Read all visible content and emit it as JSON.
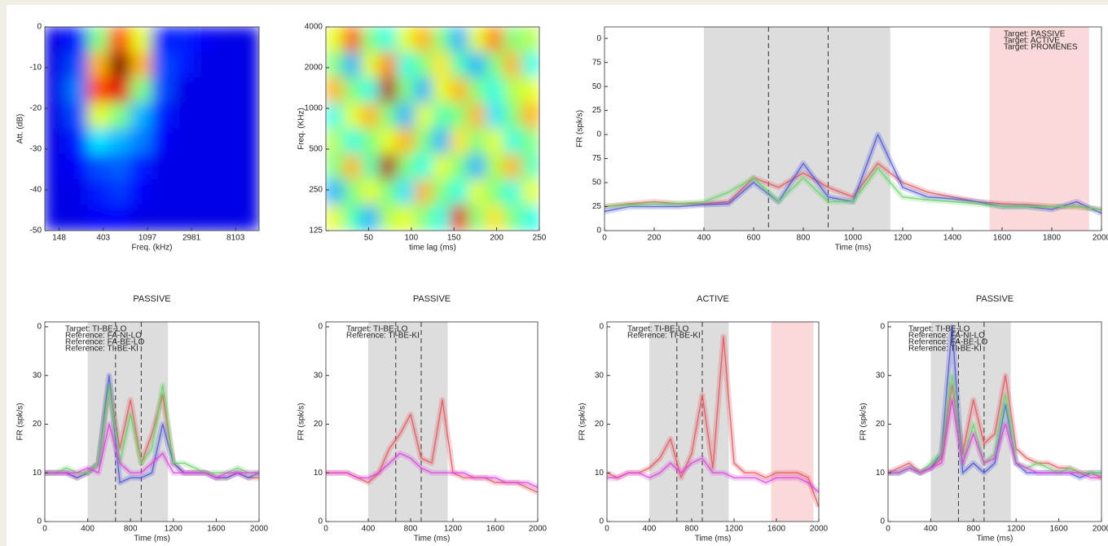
{
  "chart_data": [
    {
      "type": "heatmap",
      "xlabel": "Freq. (kHz)",
      "ylabel": "Att. (dB)",
      "xscale": "log",
      "xlim": [
        107,
        13800
      ],
      "ylim": [
        -50,
        0
      ],
      "xticks": [
        148,
        403,
        1097,
        2981,
        8103
      ],
      "yticks": [
        0,
        -10,
        -20,
        -30,
        -40,
        -50
      ],
      "colormap": "jet",
      "z": [
        [
          0.1,
          0.15,
          0.5,
          0.8,
          0.6,
          0.15,
          0.15,
          0.12,
          0.1,
          0.1
        ],
        [
          0.1,
          0.2,
          0.7,
          1,
          0.7,
          0.2,
          0.15,
          0.1,
          0.1,
          0.1
        ],
        [
          0.1,
          0.25,
          0.8,
          0.9,
          0.5,
          0.2,
          0.1,
          0.1,
          0.1,
          0.1
        ],
        [
          0.1,
          0.2,
          0.6,
          0.5,
          0.3,
          0.15,
          0.1,
          0.1,
          0.1,
          0.1
        ],
        [
          0.1,
          0.15,
          0.35,
          0.3,
          0.25,
          0.12,
          0.1,
          0.1,
          0.1,
          0.1
        ],
        [
          0.1,
          0.12,
          0.2,
          0.22,
          0.15,
          0.1,
          0.1,
          0.1,
          0.1,
          0.1
        ],
        [
          0.1,
          0.1,
          0.15,
          0.18,
          0.12,
          0.1,
          0.1,
          0.1,
          0.1,
          0.1
        ],
        [
          0.1,
          0.1,
          0.12,
          0.12,
          0.1,
          0.1,
          0.1,
          0.1,
          0.1,
          0.1
        ]
      ]
    },
    {
      "type": "heatmap",
      "xlabel": "time lag (ms)",
      "ylabel": "Freq. (KHz)",
      "yscale": "log",
      "xlim": [
        0,
        250
      ],
      "ylim": [
        125,
        4000
      ],
      "xticks": [
        50,
        100,
        150,
        200,
        250
      ],
      "yticks": [
        125,
        250,
        500,
        1000,
        2000,
        4000
      ],
      "colormap": "jet",
      "z": [
        [
          0.6,
          0.8,
          0.5,
          0.4,
          0.6,
          0.7,
          0.5,
          0.3,
          0.6,
          0.75,
          0.5,
          0.55
        ],
        [
          0.5,
          0.3,
          0.6,
          0.75,
          0.4,
          0.5,
          0.65,
          0.45,
          0.3,
          0.5,
          0.7,
          0.4
        ],
        [
          0.7,
          0.5,
          0.4,
          0.95,
          0.5,
          0.3,
          0.6,
          0.7,
          0.5,
          0.4,
          0.55,
          0.6
        ],
        [
          0.4,
          0.6,
          0.7,
          0.5,
          0.3,
          0.6,
          0.45,
          0.5,
          0.7,
          0.35,
          0.5,
          0.7
        ],
        [
          0.55,
          0.4,
          0.5,
          0.6,
          0.7,
          0.5,
          0.3,
          0.65,
          0.5,
          0.6,
          0.4,
          0.5
        ],
        [
          0.5,
          0.7,
          0.45,
          0.95,
          0.5,
          0.4,
          0.6,
          0.5,
          0.3,
          0.55,
          0.7,
          0.45
        ],
        [
          0.3,
          0.5,
          0.6,
          0.5,
          0.35,
          0.7,
          0.5,
          0.4,
          0.6,
          0.5,
          0.4,
          0.6
        ],
        [
          0.6,
          0.45,
          0.3,
          0.55,
          0.6,
          0.5,
          0.4,
          0.9,
          0.5,
          0.65,
          0.5,
          0.4
        ]
      ]
    },
    {
      "type": "line",
      "xlabel": "Time (ms)",
      "ylabel": "FR (spk/s)",
      "xlim": [
        0,
        2000
      ],
      "ylim": [
        0,
        212
      ],
      "xticks": [
        0,
        200,
        400,
        600,
        800,
        1000,
        1200,
        1400,
        1600,
        1800,
        2000
      ],
      "yticks": [
        0,
        25,
        50,
        75,
        {
          "value": 100,
          "label": "0"
        },
        {
          "value": 125,
          "label": "25"
        },
        {
          "value": 150,
          "label": "50"
        },
        {
          "value": 175,
          "label": "75"
        },
        {
          "value": 200,
          "label": "0"
        }
      ],
      "legend": "upper right",
      "shaded_regions": [
        {
          "x": [
            400,
            1150
          ],
          "color": "#dddddd"
        },
        {
          "x": [
            1550,
            1950
          ],
          "color": "#f9d9d9"
        }
      ],
      "vlines": [
        660,
        900
      ],
      "x": [
        0,
        100,
        200,
        300,
        400,
        500,
        600,
        700,
        800,
        900,
        1000,
        1100,
        1200,
        1300,
        1400,
        1500,
        1600,
        1700,
        1800,
        1900,
        2000
      ],
      "series": [
        {
          "name": "Target: PASSIVE",
          "color": "#e8555a",
          "values": [
            25,
            28,
            30,
            28,
            28,
            30,
            55,
            45,
            60,
            45,
            35,
            70,
            50,
            40,
            35,
            30,
            28,
            27,
            25,
            25,
            22
          ]
        },
        {
          "name": "Target: ACTIVE",
          "color": "#4a55dd",
          "values": [
            20,
            25,
            25,
            25,
            27,
            28,
            50,
            30,
            70,
            35,
            30,
            100,
            45,
            35,
            33,
            30,
            25,
            25,
            22,
            30,
            18
          ]
        },
        {
          "name": "Target: PROMENES",
          "color": "#66d466",
          "values": [
            25,
            27,
            28,
            28,
            30,
            40,
            55,
            30,
            55,
            30,
            30,
            65,
            35,
            32,
            30,
            28,
            25,
            25,
            25,
            25,
            22
          ]
        }
      ]
    },
    {
      "type": "line",
      "title": "PASSIVE",
      "xlabel": "Time (ms)",
      "ylabel": "FR (spk/s)",
      "xlim": [
        0,
        2000
      ],
      "ylim": [
        0,
        41
      ],
      "xticks": [
        0,
        400,
        800,
        1200,
        1600,
        2000
      ],
      "yticks": [
        0,
        10,
        20,
        30,
        {
          "value": 40,
          "label": "0"
        }
      ],
      "legend": "upper left",
      "shaded_regions": [
        {
          "x": [
            400,
            1150
          ],
          "color": "#dddddd"
        }
      ],
      "vlines": [
        660,
        900
      ],
      "x": [
        0,
        100,
        200,
        300,
        400,
        500,
        600,
        700,
        800,
        900,
        1000,
        1100,
        1200,
        1300,
        1400,
        1500,
        1600,
        1700,
        1800,
        1900,
        2000
      ],
      "series": [
        {
          "name": "Target: TI-BE-LO",
          "color": "#e8555a",
          "values": [
            10,
            10,
            10,
            9,
            10,
            12,
            28,
            15,
            25,
            12,
            18,
            26,
            12,
            10,
            10,
            10,
            9,
            9,
            10,
            9,
            9
          ]
        },
        {
          "name": "Reference: FA-NI-LO",
          "color": "#4a55dd",
          "values": [
            10,
            10,
            10,
            9,
            10,
            12,
            30,
            8,
            9,
            9,
            10,
            20,
            12,
            10,
            10,
            10,
            9,
            9,
            10,
            9,
            10
          ]
        },
        {
          "name": "Reference: FA-BE-LO",
          "color": "#66d466",
          "values": [
            10,
            10,
            11,
            10,
            10,
            12,
            28,
            12,
            22,
            12,
            15,
            28,
            12,
            12,
            11,
            10,
            10,
            10,
            11,
            10,
            10
          ]
        },
        {
          "name": "Reference: TI-BE-KI",
          "color": "#dd44dd",
          "values": [
            10,
            10,
            10,
            10,
            11,
            10,
            20,
            12,
            10,
            10,
            12,
            14,
            10,
            10,
            10,
            10,
            9,
            10,
            10,
            10,
            10
          ]
        }
      ]
    },
    {
      "type": "line",
      "title": "PASSIVE",
      "xlabel": "Time (ms)",
      "ylabel": "FR (spk/s)",
      "xlim": [
        0,
        2000
      ],
      "ylim": [
        0,
        41
      ],
      "xticks": [
        0,
        400,
        800,
        1200,
        1600,
        2000
      ],
      "yticks": [
        0,
        10,
        20,
        30,
        {
          "value": 40,
          "label": "0"
        }
      ],
      "legend": "upper left",
      "shaded_regions": [
        {
          "x": [
            400,
            1150
          ],
          "color": "#dddddd"
        }
      ],
      "vlines": [
        660,
        900
      ],
      "x": [
        0,
        100,
        200,
        300,
        400,
        500,
        600,
        700,
        800,
        900,
        1000,
        1100,
        1200,
        1300,
        1400,
        1500,
        1600,
        1700,
        1800,
        1900,
        2000
      ],
      "series": [
        {
          "name": "Target: TI-BE-LO",
          "color": "#e8555a",
          "values": [
            10,
            10,
            10,
            9,
            8,
            10,
            15,
            18,
            22,
            13,
            12,
            25,
            10,
            9,
            9,
            9,
            8,
            8,
            8,
            7,
            6
          ]
        },
        {
          "name": "Reference: TI-BE-KI",
          "color": "#dd44dd",
          "values": [
            10,
            10,
            10,
            9,
            9,
            10,
            12,
            14,
            13,
            11,
            10,
            10,
            10,
            10,
            9,
            9,
            9,
            8,
            8,
            8,
            7
          ]
        }
      ]
    },
    {
      "type": "line",
      "title": "ACTIVE",
      "xlabel": "Time (ms)",
      "ylabel": "FR (spk/s)",
      "xlim": [
        0,
        2000
      ],
      "ylim": [
        0,
        41
      ],
      "xticks": [
        0,
        400,
        800,
        1200,
        1600,
        2000
      ],
      "yticks": [
        0,
        10,
        20,
        30,
        {
          "value": 40,
          "label": "0"
        }
      ],
      "legend": "upper left",
      "shaded_regions": [
        {
          "x": [
            400,
            1150
          ],
          "color": "#dddddd"
        },
        {
          "x": [
            1550,
            1950
          ],
          "color": "#f9d9d9"
        }
      ],
      "vlines": [
        660,
        900
      ],
      "x": [
        0,
        100,
        200,
        300,
        400,
        500,
        600,
        700,
        800,
        900,
        1000,
        1100,
        1200,
        1300,
        1400,
        1500,
        1600,
        1700,
        1800,
        1900,
        2000
      ],
      "series": [
        {
          "name": "Target: TI-BE-LO",
          "color": "#e8555a",
          "values": [
            10,
            9,
            10,
            10,
            11,
            13,
            17,
            9,
            14,
            26,
            11,
            38,
            12,
            10,
            10,
            9,
            10,
            10,
            10,
            9,
            3
          ]
        },
        {
          "name": "Reference: TI-BE-KI",
          "color": "#dd44dd",
          "values": [
            9,
            9,
            10,
            10,
            9,
            10,
            12,
            10,
            12,
            13,
            10,
            10,
            9,
            9,
            9,
            8,
            9,
            9,
            9,
            8,
            6
          ]
        }
      ]
    },
    {
      "type": "line",
      "title": "PASSIVE",
      "xlabel": "Time (ms)",
      "ylabel": "FR (spk/s)",
      "xlim": [
        0,
        2000
      ],
      "ylim": [
        0,
        41
      ],
      "xticks": [
        0,
        400,
        800,
        1200,
        1600,
        2000
      ],
      "yticks": [
        0,
        10,
        20,
        30,
        {
          "value": 40,
          "label": "0"
        }
      ],
      "legend": "upper left",
      "shaded_regions": [
        {
          "x": [
            400,
            1150
          ],
          "color": "#dddddd"
        }
      ],
      "vlines": [
        660,
        900
      ],
      "x": [
        0,
        100,
        200,
        300,
        400,
        500,
        600,
        700,
        800,
        900,
        1000,
        1100,
        1200,
        1300,
        1400,
        1500,
        1600,
        1700,
        1800,
        1900,
        2000
      ],
      "series": [
        {
          "name": "Target: TI-BE-LO",
          "color": "#e8555a",
          "values": [
            10,
            11,
            12,
            10,
            11,
            13,
            28,
            14,
            25,
            16,
            18,
            30,
            15,
            13,
            12,
            12,
            11,
            11,
            10,
            10,
            9
          ]
        },
        {
          "name": "Reference: FA-NI-LO",
          "color": "#4a55dd",
          "values": [
            10,
            10,
            11,
            10,
            11,
            14,
            40,
            10,
            12,
            10,
            12,
            24,
            12,
            10,
            10,
            10,
            10,
            10,
            9,
            10,
            10
          ]
        },
        {
          "name": "Reference: FA-BE-LO",
          "color": "#66d466",
          "values": [
            10,
            10,
            11,
            10,
            12,
            14,
            30,
            12,
            20,
            12,
            14,
            26,
            12,
            11,
            12,
            11,
            10,
            11,
            10,
            10,
            10
          ]
        },
        {
          "name": "Reference: TI-BE-KI",
          "color": "#dd44dd",
          "values": [
            10,
            10,
            11,
            10,
            11,
            12,
            25,
            12,
            18,
            12,
            13,
            20,
            12,
            11,
            10,
            10,
            10,
            10,
            10,
            9,
            9
          ]
        }
      ]
    }
  ]
}
